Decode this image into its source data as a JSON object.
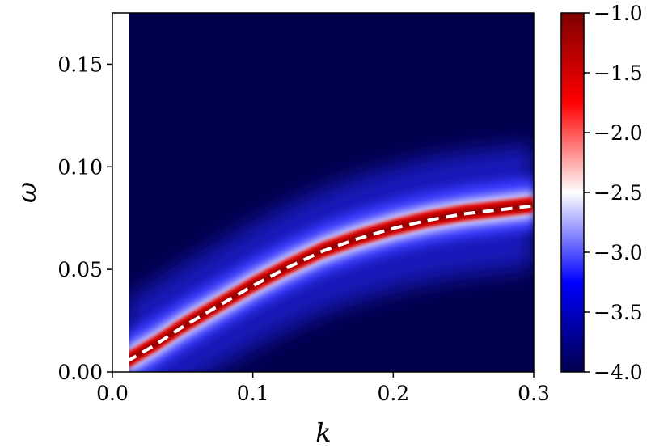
{
  "chart_data": {
    "type": "heatmap",
    "title": "",
    "xlabel": "k",
    "ylabel": "ω",
    "xlim": [
      0.0,
      0.3
    ],
    "ylim": [
      0.0,
      0.175
    ],
    "data_xlim": [
      0.01,
      0.3
    ],
    "x_ticks": [
      0.0,
      0.1,
      0.2,
      0.3
    ],
    "x_tick_labels": [
      "0.0",
      "0.1",
      "0.2",
      "0.3"
    ],
    "y_ticks": [
      0.0,
      0.05,
      0.1,
      0.15
    ],
    "y_tick_labels": [
      "0.00",
      "0.05",
      "0.10",
      "0.15"
    ],
    "colorbar": {
      "min": -4.0,
      "max": -1.0,
      "ticks": [
        -1.0,
        -1.5,
        -2.0,
        -2.5,
        -3.0,
        -3.5,
        -4.0
      ],
      "tick_labels": [
        "−1.0",
        "−1.5",
        "−2.0",
        "−2.5",
        "−3.0",
        "−3.5",
        "−4.0"
      ],
      "colormap": "seismic",
      "colors": [
        "#00004d",
        "#0000ff",
        "#ffffff",
        "#ff0000",
        "#800000"
      ]
    },
    "ridge_curve": {
      "description_style": "dashed",
      "color": "#ffffff",
      "k": [
        0.01,
        0.03,
        0.05,
        0.075,
        0.1,
        0.125,
        0.15,
        0.175,
        0.2,
        0.225,
        0.25,
        0.275,
        0.3
      ],
      "omega": [
        0.005,
        0.013,
        0.022,
        0.032,
        0.042,
        0.051,
        0.059,
        0.065,
        0.07,
        0.074,
        0.077,
        0.079,
        0.081
      ]
    }
  }
}
